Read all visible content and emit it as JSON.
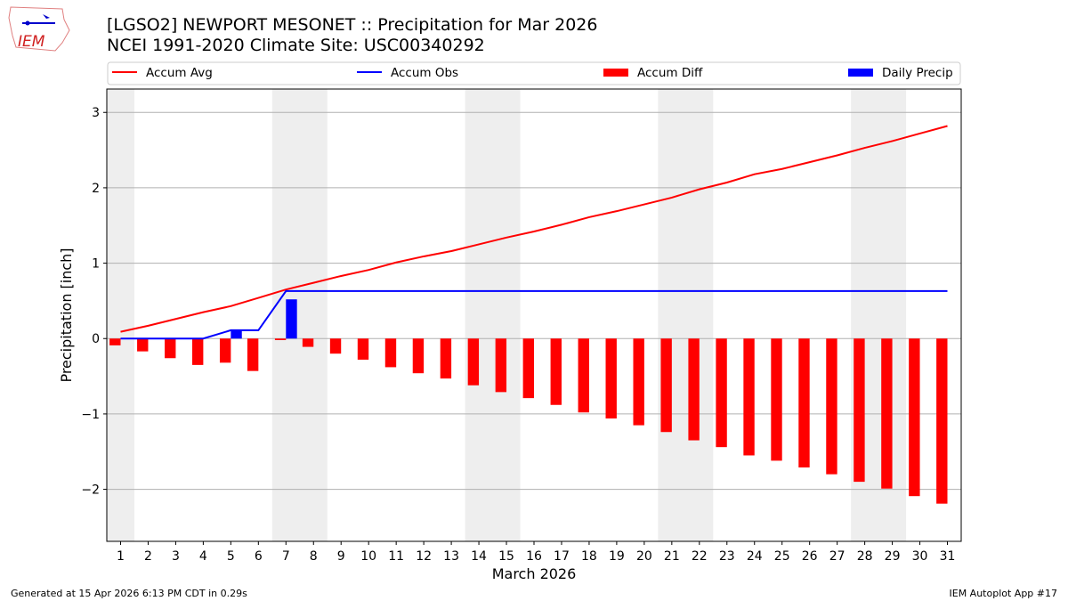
{
  "header": {
    "title_line1": "[LGSO2] NEWPORT MESONET :: Precipitation for Mar 2026",
    "title_line2": "NCEI 1991-2020 Climate Site: USC00340292",
    "logo_text": "IEM"
  },
  "footer": {
    "left": "Generated at 15 Apr 2026 6:13 PM CDT in 0.29s",
    "right": "IEM Autoplot App #17"
  },
  "chart_data": {
    "type": "bar",
    "xlabel": "March 2026",
    "ylabel": "Precipitation [inch]",
    "xlim": [
      0.5,
      31.5
    ],
    "ylim": [
      -2.69,
      3.31
    ],
    "yticks": [
      -2,
      -1,
      0,
      1,
      2,
      3
    ],
    "ytick_labels": [
      "−2",
      "−1",
      "0",
      "1",
      "2",
      "3"
    ],
    "x": [
      1,
      2,
      3,
      4,
      5,
      6,
      7,
      8,
      9,
      10,
      11,
      12,
      13,
      14,
      15,
      16,
      17,
      18,
      19,
      20,
      21,
      22,
      23,
      24,
      25,
      26,
      27,
      28,
      29,
      30,
      31
    ],
    "grid": "horizontal",
    "legend_placement": "top",
    "weekend_shading": [
      [
        0.5,
        1.5
      ],
      [
        6.5,
        8.5
      ],
      [
        13.5,
        15.5
      ],
      [
        20.5,
        22.5
      ],
      [
        27.5,
        29.5
      ]
    ],
    "series": [
      {
        "name": "Accum Avg",
        "kind": "line",
        "color": "#ff0000",
        "values": [
          0.09,
          0.17,
          0.26,
          0.35,
          0.43,
          0.54,
          0.65,
          0.74,
          0.83,
          0.91,
          1.01,
          1.09,
          1.16,
          1.25,
          1.34,
          1.42,
          1.51,
          1.61,
          1.69,
          1.78,
          1.87,
          1.98,
          2.07,
          2.18,
          2.25,
          2.34,
          2.43,
          2.53,
          2.62,
          2.72,
          2.82
        ]
      },
      {
        "name": "Accum Obs",
        "kind": "line",
        "color": "#0000ff",
        "values": [
          0,
          0,
          0,
          0,
          0.11,
          0.11,
          0.63,
          0.63,
          0.63,
          0.63,
          0.63,
          0.63,
          0.63,
          0.63,
          0.63,
          0.63,
          0.63,
          0.63,
          0.63,
          0.63,
          0.63,
          0.63,
          0.63,
          0.63,
          0.63,
          0.63,
          0.63,
          0.63,
          0.63,
          0.63,
          0.63
        ]
      },
      {
        "name": "Accum Diff",
        "kind": "bar",
        "color": "#ff0000",
        "values": [
          -0.09,
          -0.17,
          -0.26,
          -0.35,
          -0.32,
          -0.43,
          -0.02,
          -0.11,
          -0.2,
          -0.28,
          -0.38,
          -0.46,
          -0.53,
          -0.62,
          -0.71,
          -0.79,
          -0.88,
          -0.98,
          -1.06,
          -1.15,
          -1.24,
          -1.35,
          -1.44,
          -1.55,
          -1.62,
          -1.71,
          -1.8,
          -1.9,
          -1.99,
          -2.09,
          -2.19
        ]
      },
      {
        "name": "Daily Precip",
        "kind": "bar",
        "color": "#0000ff",
        "values": [
          0,
          0,
          0,
          0,
          0.11,
          0,
          0.52,
          0,
          0,
          0,
          0,
          0,
          0,
          0,
          0,
          0,
          0,
          0,
          0,
          0,
          0,
          0,
          0,
          0,
          0,
          0,
          0,
          0,
          0,
          0,
          0
        ]
      }
    ]
  }
}
